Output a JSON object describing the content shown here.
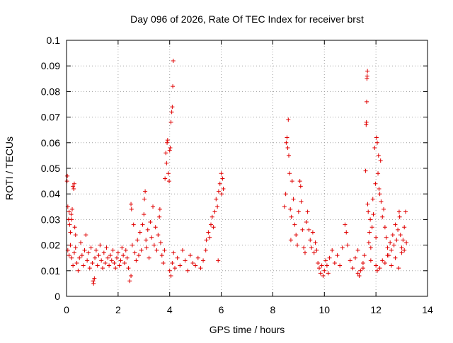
{
  "chart_data": {
    "type": "scatter",
    "title": "Day 096 of 2026, Rate Of TEC Index for receiver brst",
    "xlabel": "GPS time / hours",
    "ylabel": "ROTI / TECUs",
    "xlim": [
      0,
      14
    ],
    "ylim": [
      0,
      0.1
    ],
    "xticks": [
      0,
      2,
      4,
      6,
      8,
      10,
      12,
      14
    ],
    "xtick_labels": [
      "0",
      "2",
      "4",
      "6",
      "8",
      "10",
      "12",
      "14"
    ],
    "yticks": [
      0,
      0.01,
      0.02,
      0.03,
      0.04,
      0.05,
      0.06,
      0.07,
      0.08,
      0.09,
      0.1
    ],
    "ytick_labels": [
      "0",
      "0.01",
      "0.02",
      "0.03",
      "0.04",
      "0.05",
      "0.06",
      "0.07",
      "0.08",
      "0.09",
      "0.1"
    ],
    "grid": true,
    "marker": "+",
    "series": [
      {
        "name": "ROTI",
        "color": "#e00000",
        "points": [
          [
            0.02,
            0.045
          ],
          [
            0.03,
            0.047
          ],
          [
            0.05,
            0.035
          ],
          [
            0.08,
            0.03
          ],
          [
            0.1,
            0.033
          ],
          [
            0.12,
            0.028
          ],
          [
            0.15,
            0.025
          ],
          [
            0.18,
            0.032
          ],
          [
            0.2,
            0.03
          ],
          [
            0.22,
            0.034
          ],
          [
            0.25,
            0.043
          ],
          [
            0.28,
            0.042
          ],
          [
            0.3,
            0.044
          ],
          [
            0.32,
            0.027
          ],
          [
            0.35,
            0.024
          ],
          [
            0.05,
            0.018
          ],
          [
            0.1,
            0.016
          ],
          [
            0.15,
            0.02
          ],
          [
            0.2,
            0.015
          ],
          [
            0.25,
            0.012
          ],
          [
            0.3,
            0.017
          ],
          [
            0.35,
            0.019
          ],
          [
            0.4,
            0.013
          ],
          [
            0.45,
            0.01
          ],
          [
            0.5,
            0.015
          ],
          [
            0.55,
            0.021
          ],
          [
            0.6,
            0.016
          ],
          [
            0.65,
            0.012
          ],
          [
            0.7,
            0.018
          ],
          [
            0.75,
            0.024
          ],
          [
            0.8,
            0.014
          ],
          [
            0.85,
            0.017
          ],
          [
            0.9,
            0.011
          ],
          [
            0.95,
            0.019
          ],
          [
            1.0,
            0.013
          ],
          [
            1.03,
            0.006
          ],
          [
            1.05,
            0.005
          ],
          [
            1.08,
            0.007
          ],
          [
            1.1,
            0.015
          ],
          [
            1.15,
            0.018
          ],
          [
            1.2,
            0.012
          ],
          [
            1.25,
            0.016
          ],
          [
            1.3,
            0.02
          ],
          [
            1.35,
            0.014
          ],
          [
            1.4,
            0.011
          ],
          [
            1.45,
            0.017
          ],
          [
            1.5,
            0.013
          ],
          [
            1.55,
            0.019
          ],
          [
            1.6,
            0.015
          ],
          [
            1.65,
            0.012
          ],
          [
            1.7,
            0.016
          ],
          [
            1.75,
            0.014
          ],
          [
            1.8,
            0.018
          ],
          [
            1.85,
            0.013
          ],
          [
            1.9,
            0.011
          ],
          [
            1.95,
            0.015
          ],
          [
            2.0,
            0.017
          ],
          [
            2.05,
            0.012
          ],
          [
            2.1,
            0.014
          ],
          [
            2.15,
            0.019
          ],
          [
            2.2,
            0.016
          ],
          [
            2.25,
            0.013
          ],
          [
            2.3,
            0.018
          ],
          [
            2.35,
            0.015
          ],
          [
            2.4,
            0.011
          ],
          [
            2.45,
            0.006
          ],
          [
            2.5,
            0.008
          ],
          [
            2.5,
            0.036
          ],
          [
            2.52,
            0.034
          ],
          [
            2.55,
            0.02
          ],
          [
            2.6,
            0.028
          ],
          [
            2.65,
            0.017
          ],
          [
            2.7,
            0.014
          ],
          [
            2.75,
            0.022
          ],
          [
            2.8,
            0.016
          ],
          [
            2.85,
            0.025
          ],
          [
            2.9,
            0.018
          ],
          [
            2.95,
            0.028
          ],
          [
            3.0,
            0.032
          ],
          [
            3.02,
            0.038
          ],
          [
            3.05,
            0.041
          ],
          [
            3.08,
            0.022
          ],
          [
            3.1,
            0.019
          ],
          [
            3.15,
            0.026
          ],
          [
            3.2,
            0.015
          ],
          [
            3.25,
            0.029
          ],
          [
            3.3,
            0.023
          ],
          [
            3.35,
            0.035
          ],
          [
            3.4,
            0.02
          ],
          [
            3.45,
            0.027
          ],
          [
            3.5,
            0.018
          ],
          [
            3.55,
            0.024
          ],
          [
            3.6,
            0.031
          ],
          [
            3.62,
            0.034
          ],
          [
            3.65,
            0.021
          ],
          [
            3.7,
            0.016
          ],
          [
            3.75,
            0.013
          ],
          [
            3.8,
            0.018
          ],
          [
            3.82,
            0.046
          ],
          [
            3.85,
            0.056
          ],
          [
            3.88,
            0.052
          ],
          [
            3.9,
            0.06
          ],
          [
            3.92,
            0.061
          ],
          [
            3.95,
            0.048
          ],
          [
            3.98,
            0.045
          ],
          [
            4.0,
            0.057
          ],
          [
            4.02,
            0.058
          ],
          [
            4.05,
            0.068
          ],
          [
            4.08,
            0.072
          ],
          [
            4.1,
            0.074
          ],
          [
            4.12,
            0.082
          ],
          [
            4.14,
            0.092
          ],
          [
            4.0,
            0.01
          ],
          [
            4.05,
            0.008
          ],
          [
            4.1,
            0.013
          ],
          [
            4.15,
            0.017
          ],
          [
            4.2,
            0.011
          ],
          [
            4.3,
            0.015
          ],
          [
            4.4,
            0.012
          ],
          [
            4.5,
            0.018
          ],
          [
            4.6,
            0.014
          ],
          [
            4.7,
            0.01
          ],
          [
            4.8,
            0.016
          ],
          [
            4.9,
            0.013
          ],
          [
            5.0,
            0.012
          ],
          [
            5.1,
            0.015
          ],
          [
            5.2,
            0.011
          ],
          [
            5.3,
            0.014
          ],
          [
            5.4,
            0.018
          ],
          [
            5.42,
            0.022
          ],
          [
            5.5,
            0.025
          ],
          [
            5.55,
            0.023
          ],
          [
            5.6,
            0.028
          ],
          [
            5.65,
            0.031
          ],
          [
            5.7,
            0.027
          ],
          [
            5.75,
            0.033
          ],
          [
            5.8,
            0.038
          ],
          [
            5.85,
            0.035
          ],
          [
            5.88,
            0.014
          ],
          [
            5.9,
            0.041
          ],
          [
            5.95,
            0.044
          ],
          [
            6.0,
            0.048
          ],
          [
            6.02,
            0.04
          ],
          [
            6.05,
            0.046
          ],
          [
            6.08,
            0.042
          ],
          [
            8.45,
            0.035
          ],
          [
            8.5,
            0.04
          ],
          [
            8.52,
            0.06
          ],
          [
            8.55,
            0.062
          ],
          [
            8.58,
            0.058
          ],
          [
            8.6,
            0.069
          ],
          [
            8.62,
            0.055
          ],
          [
            8.65,
            0.048
          ],
          [
            8.68,
            0.034
          ],
          [
            8.7,
            0.022
          ],
          [
            8.72,
            0.031
          ],
          [
            8.75,
            0.045
          ],
          [
            8.8,
            0.038
          ],
          [
            8.85,
            0.028
          ],
          [
            8.9,
            0.024
          ],
          [
            8.95,
            0.02
          ],
          [
            9.0,
            0.033
          ],
          [
            9.05,
            0.045
          ],
          [
            9.08,
            0.043
          ],
          [
            9.1,
            0.037
          ],
          [
            9.15,
            0.026
          ],
          [
            9.2,
            0.019
          ],
          [
            9.25,
            0.017
          ],
          [
            9.3,
            0.029
          ],
          [
            9.35,
            0.033
          ],
          [
            9.4,
            0.026
          ],
          [
            9.45,
            0.022
          ],
          [
            9.5,
            0.019
          ],
          [
            9.55,
            0.025
          ],
          [
            9.6,
            0.017
          ],
          [
            9.65,
            0.021
          ],
          [
            9.7,
            0.018
          ],
          [
            9.75,
            0.013
          ],
          [
            9.8,
            0.011
          ],
          [
            9.85,
            0.009
          ],
          [
            9.9,
            0.012
          ],
          [
            9.95,
            0.008
          ],
          [
            10.0,
            0.01
          ],
          [
            10.05,
            0.014
          ],
          [
            10.1,
            0.012
          ],
          [
            10.15,
            0.009
          ],
          [
            10.2,
            0.015
          ],
          [
            10.3,
            0.018
          ],
          [
            10.4,
            0.013
          ],
          [
            10.5,
            0.016
          ],
          [
            10.6,
            0.012
          ],
          [
            10.7,
            0.019
          ],
          [
            10.8,
            0.028
          ],
          [
            10.85,
            0.025
          ],
          [
            10.9,
            0.02
          ],
          [
            11.0,
            0.014
          ],
          [
            11.1,
            0.011
          ],
          [
            11.2,
            0.015
          ],
          [
            11.3,
            0.009
          ],
          [
            11.35,
            0.008
          ],
          [
            11.4,
            0.01
          ],
          [
            11.5,
            0.013
          ],
          [
            11.55,
            0.016
          ],
          [
            11.6,
            0.049
          ],
          [
            11.62,
            0.067
          ],
          [
            11.63,
            0.068
          ],
          [
            11.64,
            0.076
          ],
          [
            11.65,
            0.085
          ],
          [
            11.66,
            0.086
          ],
          [
            11.67,
            0.088
          ],
          [
            11.68,
            0.036
          ],
          [
            11.7,
            0.033
          ],
          [
            11.72,
            0.021
          ],
          [
            11.75,
            0.025
          ],
          [
            11.78,
            0.03
          ],
          [
            11.8,
            0.019
          ],
          [
            11.85,
            0.027
          ],
          [
            11.88,
            0.038
          ],
          [
            11.9,
            0.032
          ],
          [
            11.95,
            0.058
          ],
          [
            11.98,
            0.044
          ],
          [
            12.0,
            0.023
          ],
          [
            12.02,
            0.062
          ],
          [
            12.05,
            0.06
          ],
          [
            12.08,
            0.048
          ],
          [
            12.1,
            0.055
          ],
          [
            12.12,
            0.042
          ],
          [
            12.15,
            0.04
          ],
          [
            12.18,
            0.053
          ],
          [
            12.2,
            0.037
          ],
          [
            12.25,
            0.031
          ],
          [
            12.3,
            0.034
          ],
          [
            12.35,
            0.027
          ],
          [
            12.4,
            0.023
          ],
          [
            12.45,
            0.019
          ],
          [
            12.5,
            0.016
          ],
          [
            12.55,
            0.021
          ],
          [
            12.6,
            0.018
          ],
          [
            12.65,
            0.024
          ],
          [
            12.7,
            0.02
          ],
          [
            12.75,
            0.028
          ],
          [
            12.8,
            0.022
          ],
          [
            12.85,
            0.026
          ],
          [
            12.9,
            0.033
          ],
          [
            12.92,
            0.031
          ],
          [
            12.95,
            0.024
          ],
          [
            13.0,
            0.019
          ],
          [
            13.05,
            0.022
          ],
          [
            13.1,
            0.027
          ],
          [
            13.15,
            0.033
          ],
          [
            13.18,
            0.021
          ],
          [
            12.0,
            0.012
          ],
          [
            12.05,
            0.01
          ],
          [
            12.15,
            0.011
          ],
          [
            12.25,
            0.014
          ],
          [
            12.35,
            0.013
          ],
          [
            12.45,
            0.016
          ],
          [
            12.6,
            0.012
          ],
          [
            12.75,
            0.015
          ],
          [
            12.88,
            0.011
          ],
          [
            13.0,
            0.017
          ],
          [
            13.1,
            0.018
          ],
          [
            11.8,
            0.014
          ],
          [
            11.5,
            0.011
          ],
          [
            11.3,
            0.018
          ]
        ]
      }
    ]
  }
}
